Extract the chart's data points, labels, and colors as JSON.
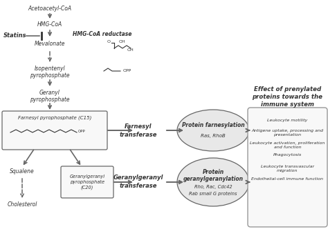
{
  "bg_color": "#ffffff",
  "gray": "#666666",
  "darkgray": "#333333",
  "lightgray": "#e8e8e8",
  "title": "Effect of prenylated\nproteins towards the\nimmune system",
  "effects_items": [
    "Leukocyte motility",
    "Antigene uptake, processing and\npresentation",
    "Leukocyte activation, proliferation\nand function",
    "Phagocytosis",
    "Leukocyte transvascular\nmigration",
    "Endothelial-cell immune function"
  ]
}
